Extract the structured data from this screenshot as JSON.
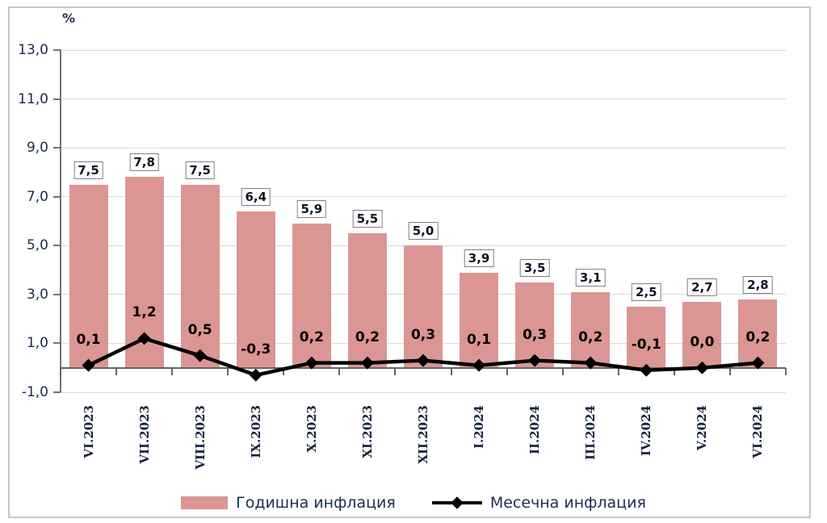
{
  "chart_data": {
    "type": "bar",
    "title": "",
    "xlabel": "",
    "ylabel": "%",
    "categories": [
      "VI.2023",
      "VII.2023",
      "VIII.2023",
      "IX.2023",
      "X.2023",
      "XI.2023",
      "XII.2023",
      "I.2024",
      "II.2024",
      "III.2024",
      "IV.2024",
      "V.2024",
      "VI.2024"
    ],
    "series": [
      {
        "name": "Годишна инфлация",
        "type": "bar",
        "color": "#DB9694",
        "values": [
          7.5,
          7.8,
          7.5,
          6.4,
          5.9,
          5.5,
          5.0,
          3.9,
          3.5,
          3.1,
          2.5,
          2.7,
          2.8
        ],
        "labels": [
          "7,5",
          "7,8",
          "7,5",
          "6,4",
          "5,9",
          "5,5",
          "5,0",
          "3,9",
          "3,5",
          "3,1",
          "2,5",
          "2,7",
          "2,8"
        ]
      },
      {
        "name": "Месечна инфлация",
        "type": "line",
        "color": "#000000",
        "values": [
          0.1,
          1.2,
          0.5,
          -0.3,
          0.2,
          0.2,
          0.3,
          0.1,
          0.3,
          0.2,
          -0.1,
          0.0,
          0.2
        ],
        "labels": [
          "0,1",
          "1,2",
          "0,5",
          "-0,3",
          "0,2",
          "0,2",
          "0,3",
          "0,1",
          "0,3",
          "0,2",
          "-0,1",
          "0,0",
          "0,2"
        ]
      }
    ],
    "ylim": [
      -1.0,
      13.0
    ],
    "ytick_step": 2.0,
    "ytick_labels": [
      "13,0",
      "11,0",
      "9,0",
      "7,0",
      "5,0",
      "3,0",
      "1,0",
      "-1,0"
    ],
    "grid": true,
    "legend_position": "bottom"
  }
}
